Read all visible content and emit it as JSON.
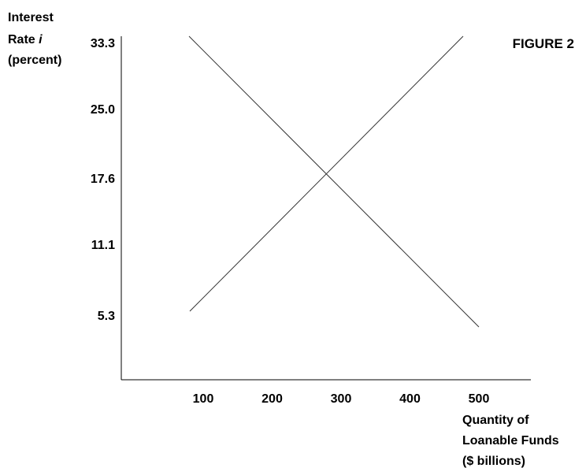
{
  "chart_data": {
    "type": "line",
    "title": "FIGURE 2",
    "ylabel": [
      "Interest",
      "Rate i",
      "(percent)"
    ],
    "xlabel": [
      "Quantity of",
      "Loanable Funds",
      "($ billions)"
    ],
    "x_ticks": [
      100,
      200,
      300,
      400,
      500
    ],
    "y_ticks": [
      "5.3",
      "11.1",
      "17.6",
      "25.0",
      "33.3"
    ],
    "series": [
      {
        "points": [
          [
            100,
            33.3
          ],
          [
            500,
            5.3
          ]
        ]
      },
      {
        "points": [
          [
            100,
            5.3
          ],
          [
            500,
            33.3
          ]
        ]
      }
    ],
    "grid": false,
    "legend": false
  }
}
